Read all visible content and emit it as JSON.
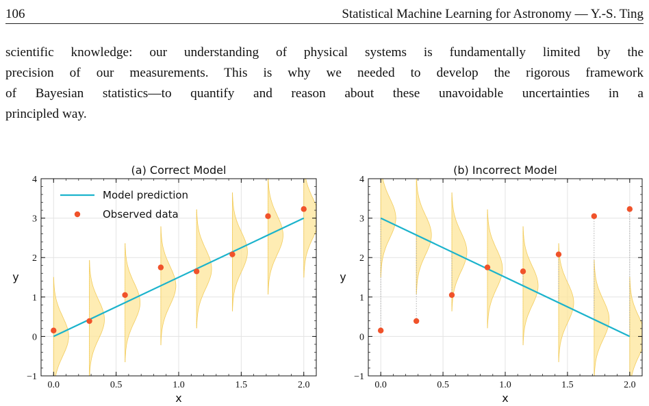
{
  "header": {
    "page_number": "106",
    "running_title": "Statistical Machine Learning for Astronomy — Y.-S. Ting"
  },
  "paragraph": {
    "lines": [
      "scientific knowledge: our understanding of physical systems is fundamentally limited by the",
      "precision of our measurements. This is why we needed to develop the rigorous framework",
      "of Bayesian statistics—to quantify and reason about these unavoidable uncertainties in a",
      "principled way."
    ]
  },
  "colors": {
    "model_line": "#1bb3cc",
    "data_points": "#f0522a",
    "distribution_fill": "#fde59a",
    "distribution_edge": "#f2cc5c",
    "grid": "#e3e3e3"
  },
  "chart_data": [
    {
      "type": "line",
      "title": "(a) Correct Model",
      "xlabel": "x",
      "ylabel": "y",
      "xlim": [
        -0.1,
        2.1
      ],
      "ylim": [
        -1,
        4
      ],
      "xticks": [
        "0.0",
        "0.5",
        "1.0",
        "1.5",
        "2.0"
      ],
      "yticks": [
        "−1",
        "0",
        "1",
        "2",
        "3",
        "4"
      ],
      "grid": true,
      "legend": {
        "placement": "top-left",
        "entries": [
          "Model prediction",
          "Observed data"
        ]
      },
      "series": [
        {
          "name": "Model prediction",
          "kind": "line",
          "x": [
            0.0,
            2.0
          ],
          "y": [
            0.0,
            3.0
          ]
        },
        {
          "name": "Observed data",
          "kind": "scatter",
          "x": [
            0.0,
            0.286,
            0.571,
            0.857,
            1.143,
            1.429,
            1.714,
            2.0
          ],
          "y": [
            0.15,
            0.39,
            1.05,
            1.75,
            1.65,
            2.08,
            3.05,
            3.23
          ]
        }
      ],
      "distributions": {
        "centers_from": "model",
        "sigma": 0.5
      }
    },
    {
      "type": "line",
      "title": "(b) Incorrect Model",
      "xlabel": "x",
      "ylabel": "y",
      "xlim": [
        -0.1,
        2.1
      ],
      "ylim": [
        -1,
        4
      ],
      "xticks": [
        "0.0",
        "0.5",
        "1.0",
        "1.5",
        "2.0"
      ],
      "yticks": [
        "−1",
        "0",
        "1",
        "2",
        "3",
        "4"
      ],
      "grid": true,
      "series": [
        {
          "name": "Model prediction",
          "kind": "line",
          "x": [
            0.0,
            2.0
          ],
          "y": [
            3.0,
            0.0
          ]
        },
        {
          "name": "Observed data",
          "kind": "scatter",
          "x": [
            0.0,
            0.286,
            0.571,
            0.857,
            1.143,
            1.429,
            1.714,
            2.0
          ],
          "y": [
            0.15,
            0.39,
            1.05,
            1.75,
            1.65,
            2.08,
            3.05,
            3.23
          ]
        }
      ],
      "distributions": {
        "centers_from": "model",
        "sigma": 0.5
      },
      "residual_lines": true
    }
  ]
}
